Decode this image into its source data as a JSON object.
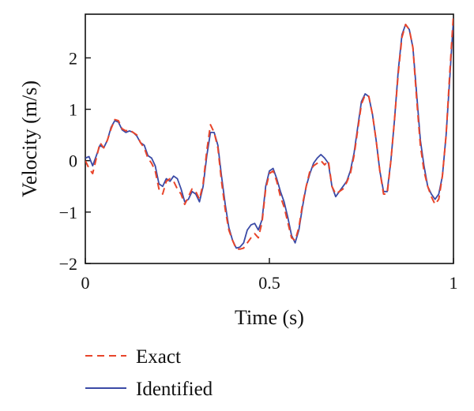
{
  "chart_data": {
    "type": "line",
    "xlabel": "Time (s)",
    "ylabel": "Velocity (m/s)",
    "xlim": [
      0,
      1
    ],
    "ylim": [
      -2,
      2.85
    ],
    "xticks": [
      {
        "value": 0,
        "label": "0"
      },
      {
        "value": 0.5,
        "label": "0.5"
      },
      {
        "value": 1,
        "label": "1"
      }
    ],
    "yticks": [
      {
        "value": -2,
        "label": "−2"
      },
      {
        "value": -1,
        "label": "−1"
      },
      {
        "value": 0,
        "label": "0"
      },
      {
        "value": 1,
        "label": "1"
      },
      {
        "value": 2,
        "label": "2"
      }
    ],
    "grid": false,
    "legend": "bottom-left",
    "series": [
      {
        "name": "Exact",
        "color": "#e8452b",
        "style": "dashed",
        "x": [
          0,
          0.01,
          0.02,
          0.03,
          0.04,
          0.05,
          0.06,
          0.07,
          0.08,
          0.09,
          0.1,
          0.11,
          0.12,
          0.13,
          0.14,
          0.15,
          0.16,
          0.17,
          0.18,
          0.19,
          0.2,
          0.21,
          0.22,
          0.23,
          0.24,
          0.25,
          0.26,
          0.27,
          0.28,
          0.29,
          0.3,
          0.31,
          0.32,
          0.33,
          0.34,
          0.35,
          0.36,
          0.37,
          0.38,
          0.39,
          0.4,
          0.41,
          0.42,
          0.43,
          0.44,
          0.45,
          0.46,
          0.47,
          0.48,
          0.49,
          0.5,
          0.51,
          0.52,
          0.53,
          0.54,
          0.55,
          0.56,
          0.57,
          0.58,
          0.59,
          0.6,
          0.61,
          0.62,
          0.63,
          0.64,
          0.65,
          0.66,
          0.67,
          0.68,
          0.69,
          0.7,
          0.71,
          0.72,
          0.73,
          0.74,
          0.75,
          0.76,
          0.77,
          0.78,
          0.79,
          0.8,
          0.81,
          0.82,
          0.83,
          0.84,
          0.85,
          0.86,
          0.87,
          0.88,
          0.89,
          0.9,
          0.91,
          0.92,
          0.93,
          0.94,
          0.95,
          0.96,
          0.97,
          0.98,
          0.99,
          1.0
        ],
        "y": [
          0.0,
          -0.15,
          -0.25,
          0.05,
          0.35,
          0.25,
          0.4,
          0.62,
          0.8,
          0.78,
          0.62,
          0.58,
          0.6,
          0.55,
          0.5,
          0.35,
          0.25,
          0.05,
          -0.05,
          -0.2,
          -0.55,
          -0.65,
          -0.4,
          -0.35,
          -0.4,
          -0.55,
          -0.65,
          -0.85,
          -0.7,
          -0.55,
          -0.6,
          -0.75,
          -0.45,
          0.2,
          0.7,
          0.55,
          0.25,
          -0.4,
          -0.95,
          -1.35,
          -1.55,
          -1.72,
          -1.72,
          -1.7,
          -1.6,
          -1.5,
          -1.42,
          -1.5,
          -1.2,
          -0.55,
          -0.25,
          -0.2,
          -0.4,
          -0.7,
          -0.9,
          -1.2,
          -1.5,
          -1.55,
          -1.3,
          -0.85,
          -0.5,
          -0.2,
          -0.1,
          -0.05,
          0.0,
          -0.08,
          0.0,
          -0.5,
          -0.65,
          -0.6,
          -0.55,
          -0.42,
          -0.25,
          0.1,
          0.6,
          1.1,
          1.28,
          1.25,
          0.9,
          0.4,
          -0.2,
          -0.65,
          -0.65,
          0.0,
          0.8,
          1.7,
          2.4,
          2.65,
          2.55,
          2.2,
          1.2,
          0.3,
          -0.2,
          -0.5,
          -0.7,
          -0.85,
          -0.75,
          -0.3,
          0.5,
          1.7,
          2.85
        ]
      },
      {
        "name": "Identified",
        "color": "#3a4aa6",
        "style": "solid",
        "x": [
          0,
          0.01,
          0.02,
          0.03,
          0.04,
          0.05,
          0.06,
          0.07,
          0.08,
          0.09,
          0.1,
          0.11,
          0.12,
          0.13,
          0.14,
          0.15,
          0.16,
          0.17,
          0.18,
          0.19,
          0.2,
          0.21,
          0.22,
          0.23,
          0.24,
          0.25,
          0.26,
          0.27,
          0.28,
          0.29,
          0.3,
          0.31,
          0.32,
          0.33,
          0.34,
          0.35,
          0.36,
          0.37,
          0.38,
          0.39,
          0.4,
          0.41,
          0.42,
          0.43,
          0.44,
          0.45,
          0.46,
          0.47,
          0.48,
          0.49,
          0.5,
          0.51,
          0.52,
          0.53,
          0.54,
          0.55,
          0.56,
          0.57,
          0.58,
          0.59,
          0.6,
          0.61,
          0.62,
          0.63,
          0.64,
          0.65,
          0.66,
          0.67,
          0.68,
          0.69,
          0.7,
          0.71,
          0.72,
          0.73,
          0.74,
          0.75,
          0.76,
          0.77,
          0.78,
          0.79,
          0.8,
          0.81,
          0.82,
          0.83,
          0.84,
          0.85,
          0.86,
          0.87,
          0.88,
          0.89,
          0.9,
          0.91,
          0.92,
          0.93,
          0.94,
          0.95,
          0.96,
          0.97,
          0.98,
          0.99,
          1.0
        ],
        "y": [
          0.05,
          0.08,
          -0.1,
          0.1,
          0.3,
          0.25,
          0.4,
          0.65,
          0.78,
          0.75,
          0.6,
          0.55,
          0.58,
          0.55,
          0.48,
          0.35,
          0.3,
          0.1,
          0.05,
          -0.1,
          -0.45,
          -0.5,
          -0.35,
          -0.4,
          -0.3,
          -0.35,
          -0.55,
          -0.8,
          -0.75,
          -0.6,
          -0.65,
          -0.8,
          -0.5,
          0.1,
          0.55,
          0.55,
          0.3,
          -0.3,
          -0.85,
          -1.3,
          -1.55,
          -1.7,
          -1.68,
          -1.6,
          -1.35,
          -1.25,
          -1.22,
          -1.35,
          -1.15,
          -0.5,
          -0.2,
          -0.15,
          -0.35,
          -0.6,
          -0.8,
          -1.1,
          -1.45,
          -1.6,
          -1.35,
          -0.9,
          -0.5,
          -0.25,
          -0.05,
          0.05,
          0.12,
          0.05,
          -0.05,
          -0.5,
          -0.7,
          -0.6,
          -0.5,
          -0.4,
          -0.2,
          0.15,
          0.65,
          1.15,
          1.3,
          1.25,
          0.9,
          0.4,
          -0.2,
          -0.6,
          -0.6,
          0.0,
          0.8,
          1.75,
          2.45,
          2.65,
          2.55,
          2.2,
          1.3,
          0.4,
          -0.1,
          -0.5,
          -0.65,
          -0.75,
          -0.65,
          -0.3,
          0.5,
          1.6,
          2.75
        ]
      }
    ]
  }
}
